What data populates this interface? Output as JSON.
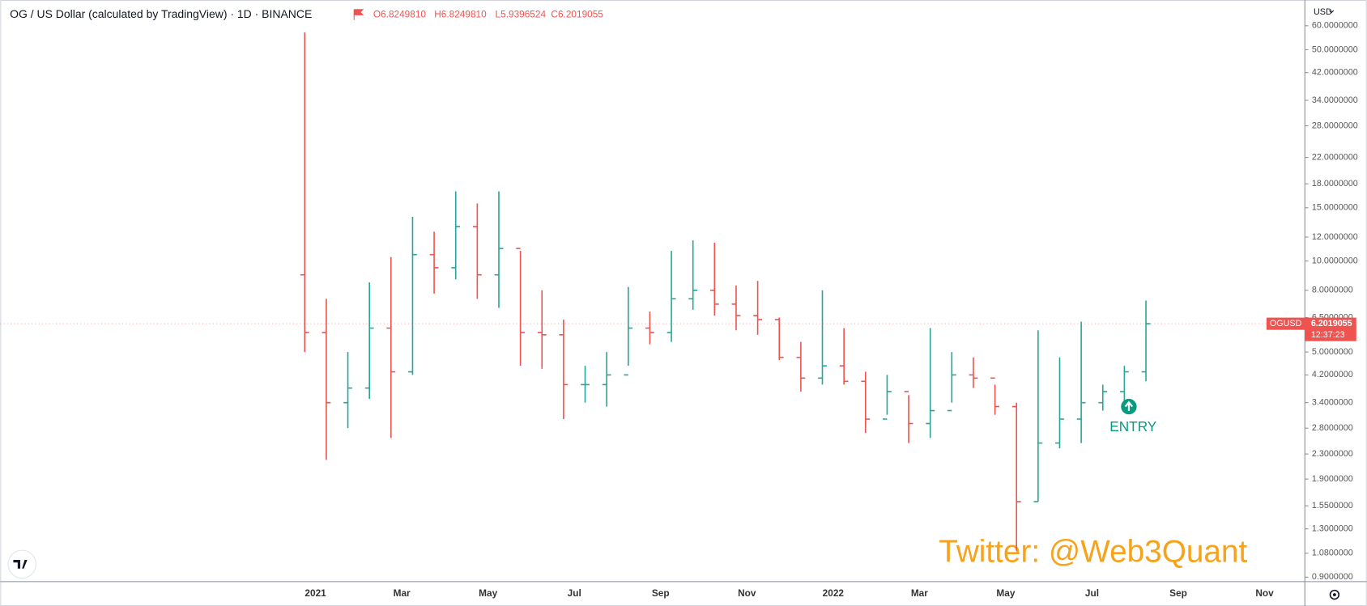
{
  "chart_data": {
    "type": "ohlc",
    "title": "OG / US Dollar (calculated by TradingView) · 1D · BINANCE",
    "ohlc_header": [
      "O6.8249810",
      "H6.8249810",
      "L5.9396524",
      "C6.2019055"
    ],
    "currency": "USD",
    "symbol": "OGUSD",
    "last_price": 6.2019055,
    "countdown": "12:37:23",
    "annotation": "ENTRY",
    "watermark": "Twitter: @Web3Quant",
    "up_color": "#26a69a",
    "down_color": "#ef5350",
    "log_scale": true,
    "grid": false,
    "categories": [
      null,
      "2021",
      null,
      null,
      null,
      "Mar",
      null,
      null,
      null,
      "May",
      null,
      null,
      null,
      "Jul",
      null,
      null,
      null,
      "Sep",
      null,
      null,
      null,
      "Nov",
      null,
      null,
      null,
      "2022",
      null,
      null,
      null,
      "Mar",
      null,
      null,
      null,
      "May",
      null,
      null,
      null,
      "Jul",
      null,
      null,
      null,
      "Sep",
      null,
      null,
      null,
      "Nov",
      null,
      null
    ],
    "open": [
      9.0,
      5.8,
      3.4,
      3.8,
      6.0,
      4.3,
      10.5,
      9.5,
      13,
      9,
      11,
      5.8,
      5.7,
      3.9,
      3.9,
      4.2,
      6.0,
      5.8,
      7.5,
      8,
      7.2,
      6.6,
      6.4,
      4.8,
      4.1,
      4.5,
      4.0,
      3.0,
      3.7,
      2.9,
      3.2,
      4.2,
      4.1,
      3.3,
      1.6,
      2.5,
      3.0,
      3.4,
      3.7,
      4.3,
      null,
      null,
      null,
      null,
      null,
      null,
      null,
      null
    ],
    "high": [
      57,
      7.5,
      5.0,
      8.5,
      10.3,
      14,
      12.5,
      17,
      15.5,
      17,
      10.8,
      8.0,
      6.4,
      4.5,
      5.0,
      8.2,
      6.8,
      10.8,
      11.7,
      11.5,
      8.3,
      8.6,
      6.5,
      5.4,
      8.0,
      6.0,
      4.3,
      4.2,
      3.6,
      6.0,
      5.0,
      4.8,
      3.9,
      3.4,
      5.9,
      4.8,
      6.3,
      3.9,
      4.5,
      7.4,
      null,
      null,
      null,
      null,
      null,
      null,
      null,
      null
    ],
    "low": [
      5.0,
      2.2,
      2.8,
      3.5,
      2.6,
      4.2,
      7.8,
      8.7,
      7.5,
      7.0,
      4.5,
      4.4,
      3.0,
      3.4,
      3.3,
      4.5,
      5.3,
      5.4,
      6.9,
      6.6,
      5.9,
      5.7,
      4.7,
      3.7,
      3.9,
      3.9,
      2.7,
      3.1,
      2.5,
      2.6,
      3.4,
      3.8,
      3.1,
      1.1,
      1.6,
      2.4,
      2.5,
      3.2,
      3.3,
      4.0,
      null,
      null,
      null,
      null,
      null,
      null,
      null,
      null
    ],
    "close": [
      5.8,
      3.4,
      3.8,
      6.0,
      4.3,
      10.5,
      9.5,
      13,
      9,
      11,
      5.8,
      5.7,
      3.9,
      3.9,
      4.2,
      6.0,
      5.8,
      7.5,
      8,
      7.2,
      6.6,
      6.4,
      4.8,
      4.1,
      4.5,
      4.0,
      3.0,
      3.7,
      2.9,
      3.2,
      4.2,
      4.1,
      3.3,
      1.6,
      2.5,
      3.0,
      3.4,
      3.7,
      4.3,
      6.2019055,
      null,
      null,
      null,
      null,
      null,
      null,
      null,
      null
    ],
    "ylim": [
      0.87,
      73
    ],
    "yticks": [
      {
        "value": 60,
        "label": "60.0000000"
      },
      {
        "value": 50,
        "label": "50.0000000"
      },
      {
        "value": 42,
        "label": "42.0000000"
      },
      {
        "value": 34,
        "label": "34.0000000"
      },
      {
        "value": 28,
        "label": "28.0000000"
      },
      {
        "value": 22,
        "label": "22.0000000"
      },
      {
        "value": 18,
        "label": "18.0000000"
      },
      {
        "value": 15,
        "label": "15.0000000"
      },
      {
        "value": 12,
        "label": "12.0000000"
      },
      {
        "value": 10,
        "label": "10.0000000"
      },
      {
        "value": 8,
        "label": "8.0000000"
      },
      {
        "value": 6.5,
        "label": "6.5000000"
      },
      {
        "value": 5,
        "label": "5.0000000"
      },
      {
        "value": 4.2,
        "label": "4.2000000"
      },
      {
        "value": 3.4,
        "label": "3.4000000"
      },
      {
        "value": 2.8,
        "label": "2.8000000"
      },
      {
        "value": 2.3,
        "label": "2.3000000"
      },
      {
        "value": 1.9,
        "label": "1.9000000"
      },
      {
        "value": 1.55,
        "label": "1.5500000"
      },
      {
        "value": 1.3,
        "label": "1.3000000"
      },
      {
        "value": 1.08,
        "label": "1.0800000"
      },
      {
        "value": 0.9,
        "label": "0.9000000"
      }
    ]
  }
}
